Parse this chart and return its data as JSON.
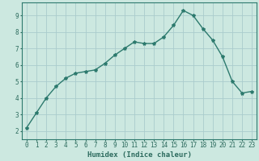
{
  "x": [
    0,
    1,
    2,
    3,
    4,
    5,
    6,
    7,
    8,
    9,
    10,
    11,
    12,
    13,
    14,
    15,
    16,
    17,
    18,
    19,
    20,
    21,
    22,
    23
  ],
  "y": [
    2.2,
    3.1,
    4.0,
    4.7,
    5.2,
    5.5,
    5.6,
    5.7,
    6.1,
    6.6,
    7.0,
    7.4,
    7.3,
    7.3,
    7.7,
    8.4,
    9.3,
    9.0,
    8.2,
    7.5,
    6.5,
    5.0,
    4.3,
    4.4
  ],
  "line_color": "#2d7a6e",
  "marker": "*",
  "marker_size": 3.0,
  "bg_color": "#cce8e0",
  "grid_color": "#aacccc",
  "xlabel": "Humidex (Indice chaleur)",
  "ylabel": "",
  "xlim": [
    -0.5,
    23.5
  ],
  "ylim": [
    1.5,
    9.8
  ],
  "yticks": [
    2,
    3,
    4,
    5,
    6,
    7,
    8,
    9
  ],
  "xticks": [
    0,
    1,
    2,
    3,
    4,
    5,
    6,
    7,
    8,
    9,
    10,
    11,
    12,
    13,
    14,
    15,
    16,
    17,
    18,
    19,
    20,
    21,
    22,
    23
  ],
  "tick_color": "#2d6b5e",
  "label_fontsize": 6.5,
  "tick_fontsize": 5.5,
  "line_width": 1.0,
  "spine_color": "#2d7a6e"
}
